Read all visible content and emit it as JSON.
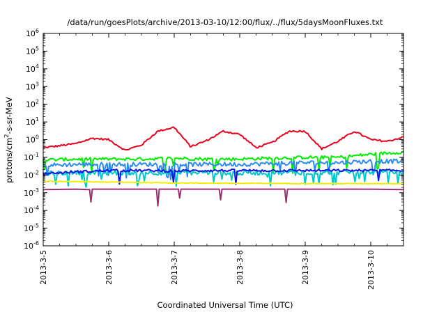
{
  "chart_data": {
    "type": "line",
    "title": "/data/run/goesPlots/archive/2013-03-10/12:00/flux/../flux/5daysMoonFluxes.txt",
    "xlabel": "Coordinated Universal Time (UTC)",
    "ylabel": {
      "prefix": "protons/cm",
      "superscript": "2",
      "suffix": "-s-sr-MeV"
    },
    "y_scale": "log",
    "ylim": [
      1e-06,
      1000000.0
    ],
    "y_ticks": [
      {
        "base": "10",
        "exp": "-6"
      },
      {
        "base": "10",
        "exp": "-5"
      },
      {
        "base": "10",
        "exp": "-4"
      },
      {
        "base": "10",
        "exp": "-3"
      },
      {
        "base": "10",
        "exp": "-2"
      },
      {
        "base": "10",
        "exp": "-1"
      },
      {
        "base": "10",
        "exp": "0"
      },
      {
        "base": "10",
        "exp": "1"
      },
      {
        "base": "10",
        "exp": "2"
      },
      {
        "base": "10",
        "exp": "3"
      },
      {
        "base": "10",
        "exp": "4"
      },
      {
        "base": "10",
        "exp": "5"
      },
      {
        "base": "10",
        "exp": "6"
      }
    ],
    "x_scale": "time",
    "xlim": [
      "2013-03-05T00:00",
      "2013-03-10T12:00"
    ],
    "x_ticks": [
      "2013-3-5",
      "2013-3-6",
      "2013-3-7",
      "2013-3-8",
      "2013-3-9",
      "2013-3-10"
    ],
    "grid": false,
    "legend": "none",
    "series": [
      {
        "color": "#e8001c",
        "x": [
          "2013-03-05T00:00",
          "2013-03-05T06:00",
          "2013-03-05T12:00",
          "2013-03-05T18:00",
          "2013-03-06T00:00",
          "2013-03-06T06:00",
          "2013-03-06T12:00",
          "2013-03-06T18:00",
          "2013-03-07T00:00",
          "2013-03-07T06:00",
          "2013-03-07T12:00",
          "2013-03-07T18:00",
          "2013-03-08T00:00",
          "2013-03-08T06:00",
          "2013-03-08T12:00",
          "2013-03-08T18:00",
          "2013-03-09T00:00",
          "2013-03-09T06:00",
          "2013-03-09T12:00",
          "2013-03-09T18:00",
          "2013-03-10T00:00",
          "2013-03-10T06:00",
          "2013-03-10T12:00"
        ],
        "y": [
          0.35,
          0.45,
          0.6,
          1.2,
          1.0,
          0.25,
          0.5,
          3,
          5,
          0.4,
          0.9,
          3,
          2,
          0.35,
          0.7,
          3,
          3,
          0.3,
          0.8,
          3,
          1.0,
          0.8,
          1.4
        ]
      },
      {
        "color": "#00ee00",
        "x": [
          "2013-03-05T00:00",
          "2013-03-05T12:00",
          "2013-03-06T00:00",
          "2013-03-06T12:00",
          "2013-03-07T00:00",
          "2013-03-07T12:00",
          "2013-03-08T00:00",
          "2013-03-08T12:00",
          "2013-03-09T00:00",
          "2013-03-09T12:00",
          "2013-03-10T00:00",
          "2013-03-10T12:00"
        ],
        "y": [
          0.07,
          0.08,
          0.08,
          0.08,
          0.09,
          0.08,
          0.08,
          0.09,
          0.1,
          0.1,
          0.15,
          0.2
        ]
      },
      {
        "color": "#2a8af0",
        "x": [
          "2013-03-05T00:00",
          "2013-03-05T12:00",
          "2013-03-06T00:00",
          "2013-03-06T12:00",
          "2013-03-07T00:00",
          "2013-03-07T12:00",
          "2013-03-08T00:00",
          "2013-03-08T12:00",
          "2013-03-09T00:00",
          "2013-03-09T12:00",
          "2013-03-10T00:00",
          "2013-03-10T12:00"
        ],
        "y": [
          0.035,
          0.04,
          0.04,
          0.04,
          0.04,
          0.04,
          0.04,
          0.045,
          0.05,
          0.05,
          0.06,
          0.06
        ]
      },
      {
        "color": "#00c8c8",
        "x": [
          "2013-03-05T00:00",
          "2013-03-05T12:00",
          "2013-03-06T00:00",
          "2013-03-06T12:00",
          "2013-03-07T00:00",
          "2013-03-07T12:00",
          "2013-03-08T00:00",
          "2013-03-08T12:00",
          "2013-03-09T00:00",
          "2013-03-09T12:00",
          "2013-03-10T00:00",
          "2013-03-10T12:00"
        ],
        "y": [
          0.012,
          0.014,
          0.013,
          0.014,
          0.013,
          0.014,
          0.013,
          0.014,
          0.014,
          0.014,
          0.015,
          0.014
        ]
      },
      {
        "color": "#0a14e6",
        "x": [
          "2013-03-05T00:00",
          "2013-03-05T12:00",
          "2013-03-06T00:00",
          "2013-03-06T12:00",
          "2013-03-07T00:00",
          "2013-03-07T12:00",
          "2013-03-08T00:00",
          "2013-03-08T12:00",
          "2013-03-09T00:00",
          "2013-03-09T12:00",
          "2013-03-10T00:00",
          "2013-03-10T12:00"
        ],
        "y": [
          0.012,
          0.015,
          0.018,
          0.018,
          0.017,
          0.018,
          0.018,
          0.018,
          0.018,
          0.018,
          0.018,
          0.018
        ]
      },
      {
        "color": "#f0f000",
        "x": [
          "2013-03-05T00:00",
          "2013-03-05T12:00",
          "2013-03-06T00:00",
          "2013-03-06T12:00",
          "2013-03-07T00:00",
          "2013-03-07T12:00",
          "2013-03-08T00:00",
          "2013-03-08T12:00",
          "2013-03-09T00:00",
          "2013-03-09T12:00",
          "2013-03-10T00:00",
          "2013-03-10T12:00"
        ],
        "y": [
          0.0045,
          0.0042,
          0.004,
          0.0038,
          0.0036,
          0.0035,
          0.0034,
          0.0034,
          0.0033,
          0.0033,
          0.0033,
          0.0033
        ]
      },
      {
        "color": "#9a2f6f",
        "x": [
          "2013-03-05T00:00",
          "2013-03-05T12:00",
          "2013-03-05T17:00",
          "2013-03-05T17:30",
          "2013-03-05T18:00",
          "2013-03-06T00:00",
          "2013-03-06T12:00",
          "2013-03-06T17:30",
          "2013-03-06T18:00",
          "2013-03-06T18:30",
          "2013-03-07T00:00",
          "2013-03-07T01:30",
          "2013-03-07T02:00",
          "2013-03-07T02:30",
          "2013-03-07T12:00",
          "2013-03-07T16:30",
          "2013-03-07T17:00",
          "2013-03-07T17:30",
          "2013-03-08T00:00",
          "2013-03-08T12:00",
          "2013-03-08T16:30",
          "2013-03-08T17:00",
          "2013-03-08T17:30",
          "2013-03-09T00:00",
          "2013-03-09T12:00",
          "2013-03-10T00:00",
          "2013-03-10T12:00"
        ],
        "y": [
          0.0015,
          0.0016,
          0.0015,
          0.0003,
          0.0016,
          0.0016,
          0.0016,
          0.0016,
          0.00018,
          0.0016,
          0.0016,
          0.0016,
          0.0005,
          0.0016,
          0.0016,
          0.0016,
          0.0004,
          0.0016,
          0.0016,
          0.0016,
          0.0016,
          0.00028,
          0.0016,
          0.0016,
          0.0016,
          0.0016,
          0.0015
        ]
      }
    ]
  }
}
